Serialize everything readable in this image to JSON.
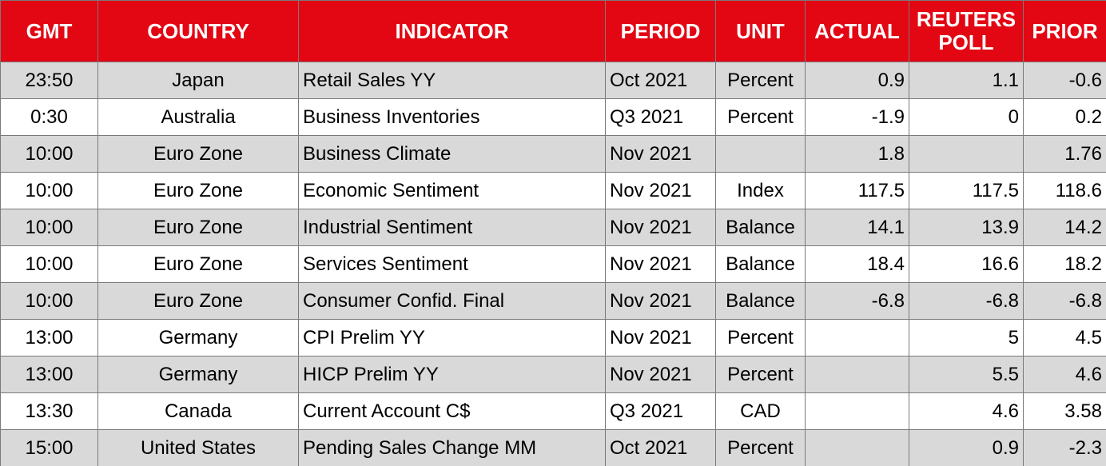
{
  "table": {
    "header": [
      "GMT",
      "COUNTRY",
      "INDICATOR",
      "PERIOD",
      "UNIT",
      "ACTUAL",
      "REUTERS POLL",
      "PRIOR"
    ],
    "rows": [
      [
        "23:50",
        "Japan",
        "Retail Sales YY",
        "Oct 2021",
        "Percent",
        "0.9",
        "1.1",
        "-0.6"
      ],
      [
        "0:30",
        "Australia",
        "Business Inventories",
        "Q3 2021",
        "Percent",
        "-1.9",
        "0",
        "0.2"
      ],
      [
        "10:00",
        "Euro Zone",
        "Business Climate",
        "Nov 2021",
        null,
        "1.8",
        null,
        "1.76"
      ],
      [
        "10:00",
        "Euro Zone",
        "Economic Sentiment",
        "Nov 2021",
        "Index",
        "117.5",
        "117.5",
        "118.6"
      ],
      [
        "10:00",
        "Euro Zone",
        "Industrial Sentiment",
        "Nov 2021",
        "Balance",
        "14.1",
        "13.9",
        "14.2"
      ],
      [
        "10:00",
        "Euro Zone",
        "Services Sentiment",
        "Nov 2021",
        "Balance",
        "18.4",
        "16.6",
        "18.2"
      ],
      [
        "10:00",
        "Euro Zone",
        "Consumer Confid. Final",
        "Nov 2021",
        "Balance",
        "-6.8",
        "-6.8",
        "-6.8"
      ],
      [
        "13:00",
        "Germany",
        "CPI Prelim YY",
        "Nov 2021",
        "Percent",
        null,
        "5",
        "4.5"
      ],
      [
        "13:00",
        "Germany",
        "HICP Prelim YY",
        "Nov 2021",
        "Percent",
        null,
        "5.5",
        "4.6"
      ],
      [
        "13:30",
        "Canada",
        "Current Account C$",
        "Q3 2021",
        "CAD",
        null,
        "4.6",
        "3.58"
      ],
      [
        "15:00",
        "United States",
        "Pending Sales Change MM",
        "Oct 2021",
        "Percent",
        null,
        "0.9",
        "-2.3"
      ]
    ]
  }
}
